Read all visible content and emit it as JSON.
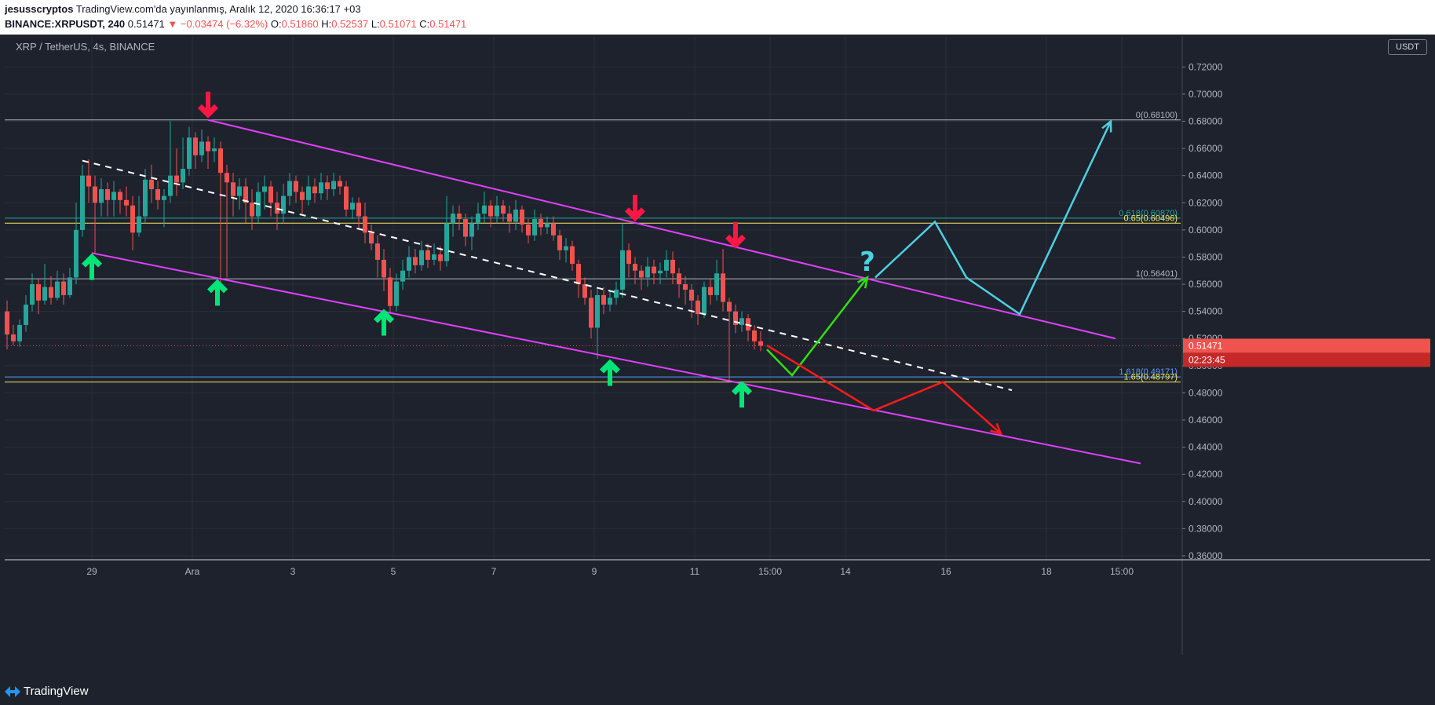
{
  "header": {
    "author": "jesusscryptos",
    "published": "TradingView.com'da yayınlanmış, Aralık 12, 2020 16:36:17 +03",
    "symbol": "BINANCE:XRPUSDT, 240",
    "last": "0.51471",
    "change": "−0.03474 (−6.32%)",
    "open_label": "O:",
    "open": "0.51860",
    "high_label": "H:",
    "high": "0.52537",
    "low_label": "L:",
    "low": "0.51071",
    "close_label": "C:",
    "close": "0.51471"
  },
  "chart_title": "XRP / TetherUS, 4s, BINANCE",
  "unit": "USDT",
  "price_tag": "0.51471",
  "countdown_tag": "02:23:45",
  "footer": {
    "brand": "TradingView"
  },
  "colors": {
    "up": "#26a69a",
    "down": "#ef5350",
    "channel": "#e040fb",
    "fib_gray": "#b2b5be",
    "fib_teal": "#26a69a",
    "fib_yellow": "#f5e663",
    "arrow_green": "#00e676",
    "arrow_red": "#ff1744",
    "path_cyan": "#4dd0e1",
    "background": "#1e222d"
  },
  "chart_data": {
    "type": "candlestick",
    "y_axis": {
      "min": 0.36,
      "max": 0.73,
      "ticks": [
        "0.72000",
        "0.70000",
        "0.68000",
        "0.66000",
        "0.64000",
        "0.62000",
        "0.60000",
        "0.58000",
        "0.56000",
        "0.54000",
        "0.52000",
        "0.50000",
        "0.48000",
        "0.46000",
        "0.44000",
        "0.42000",
        "0.40000",
        "0.38000",
        "0.36000"
      ]
    },
    "x_axis": {
      "min": 0,
      "max": 1416,
      "ticks": [
        {
          "x": 108,
          "label": "29"
        },
        {
          "x": 236,
          "label": "Ara"
        },
        {
          "x": 364,
          "label": "3"
        },
        {
          "x": 492,
          "label": "5"
        },
        {
          "x": 620,
          "label": "7"
        },
        {
          "x": 748,
          "label": "9"
        },
        {
          "x": 876,
          "label": "11"
        },
        {
          "x": 972,
          "label": "15:00"
        },
        {
          "x": 1068,
          "label": "14"
        },
        {
          "x": 1196,
          "label": "16"
        },
        {
          "x": 1324,
          "label": "18"
        },
        {
          "x": 1420,
          "label": "15:00"
        }
      ]
    },
    "candles": [
      [
        0,
        0.54,
        0.523,
        0.548,
        0.512
      ],
      [
        8,
        0.523,
        0.518,
        0.53,
        0.515
      ],
      [
        16,
        0.518,
        0.53,
        0.534,
        0.514
      ],
      [
        24,
        0.53,
        0.545,
        0.552,
        0.525
      ],
      [
        32,
        0.545,
        0.56,
        0.568,
        0.54
      ],
      [
        40,
        0.56,
        0.548,
        0.564,
        0.538
      ],
      [
        48,
        0.548,
        0.558,
        0.575,
        0.545
      ],
      [
        56,
        0.558,
        0.55,
        0.566,
        0.545
      ],
      [
        64,
        0.55,
        0.562,
        0.57,
        0.548
      ],
      [
        72,
        0.562,
        0.552,
        0.568,
        0.545
      ],
      [
        80,
        0.552,
        0.565,
        0.572,
        0.55
      ],
      [
        88,
        0.565,
        0.6,
        0.62,
        0.56
      ],
      [
        96,
        0.6,
        0.64,
        0.648,
        0.595
      ],
      [
        104,
        0.64,
        0.632,
        0.652,
        0.62
      ],
      [
        112,
        0.632,
        0.62,
        0.64,
        0.583
      ],
      [
        120,
        0.62,
        0.63,
        0.638,
        0.61
      ],
      [
        128,
        0.63,
        0.622,
        0.635,
        0.61
      ],
      [
        136,
        0.622,
        0.628,
        0.636,
        0.61
      ],
      [
        144,
        0.628,
        0.622,
        0.63,
        0.612
      ],
      [
        152,
        0.622,
        0.618,
        0.632,
        0.61
      ],
      [
        160,
        0.618,
        0.598,
        0.625,
        0.585
      ],
      [
        168,
        0.598,
        0.61,
        0.625,
        0.595
      ],
      [
        176,
        0.61,
        0.637,
        0.645,
        0.605
      ],
      [
        184,
        0.637,
        0.63,
        0.648,
        0.62
      ],
      [
        192,
        0.63,
        0.622,
        0.636,
        0.615
      ],
      [
        200,
        0.622,
        0.625,
        0.63,
        0.602
      ],
      [
        208,
        0.625,
        0.64,
        0.68,
        0.62
      ],
      [
        216,
        0.64,
        0.635,
        0.66,
        0.625
      ],
      [
        224,
        0.635,
        0.645,
        0.668,
        0.63
      ],
      [
        232,
        0.645,
        0.668,
        0.676,
        0.64
      ],
      [
        240,
        0.668,
        0.655,
        0.672,
        0.645
      ],
      [
        248,
        0.655,
        0.665,
        0.674,
        0.65
      ],
      [
        256,
        0.665,
        0.658,
        0.669,
        0.645
      ],
      [
        264,
        0.658,
        0.66,
        0.668,
        0.65
      ],
      [
        272,
        0.66,
        0.642,
        0.665,
        0.56
      ],
      [
        280,
        0.642,
        0.635,
        0.648,
        0.565
      ],
      [
        288,
        0.635,
        0.625,
        0.642,
        0.61
      ],
      [
        296,
        0.625,
        0.632,
        0.638,
        0.615
      ],
      [
        304,
        0.632,
        0.62,
        0.638,
        0.605
      ],
      [
        312,
        0.62,
        0.61,
        0.63,
        0.6
      ],
      [
        320,
        0.61,
        0.628,
        0.635,
        0.605
      ],
      [
        328,
        0.628,
        0.632,
        0.64,
        0.615
      ],
      [
        336,
        0.632,
        0.62,
        0.636,
        0.61
      ],
      [
        344,
        0.62,
        0.612,
        0.628,
        0.6
      ],
      [
        352,
        0.612,
        0.625,
        0.634,
        0.605
      ],
      [
        360,
        0.625,
        0.636,
        0.642,
        0.618
      ],
      [
        368,
        0.636,
        0.628,
        0.64,
        0.62
      ],
      [
        376,
        0.628,
        0.622,
        0.632,
        0.612
      ],
      [
        384,
        0.622,
        0.632,
        0.64,
        0.618
      ],
      [
        392,
        0.632,
        0.627,
        0.638,
        0.62
      ],
      [
        400,
        0.627,
        0.635,
        0.642,
        0.622
      ],
      [
        408,
        0.635,
        0.63,
        0.64,
        0.622
      ],
      [
        416,
        0.63,
        0.636,
        0.642,
        0.625
      ],
      [
        424,
        0.636,
        0.632,
        0.64,
        0.626
      ],
      [
        432,
        0.632,
        0.615,
        0.636,
        0.61
      ],
      [
        440,
        0.615,
        0.62,
        0.624,
        0.608
      ],
      [
        448,
        0.62,
        0.61,
        0.624,
        0.6
      ],
      [
        456,
        0.61,
        0.598,
        0.62,
        0.59
      ],
      [
        464,
        0.598,
        0.59,
        0.604,
        0.585
      ],
      [
        472,
        0.59,
        0.578,
        0.596,
        0.565
      ],
      [
        480,
        0.578,
        0.565,
        0.586,
        0.555
      ],
      [
        488,
        0.565,
        0.544,
        0.572,
        0.538
      ],
      [
        496,
        0.544,
        0.562,
        0.568,
        0.54
      ],
      [
        504,
        0.562,
        0.57,
        0.578,
        0.556
      ],
      [
        512,
        0.57,
        0.58,
        0.588,
        0.565
      ],
      [
        520,
        0.58,
        0.574,
        0.586,
        0.568
      ],
      [
        528,
        0.574,
        0.585,
        0.592,
        0.57
      ],
      [
        536,
        0.585,
        0.578,
        0.59,
        0.572
      ],
      [
        544,
        0.578,
        0.582,
        0.59,
        0.574
      ],
      [
        552,
        0.582,
        0.577,
        0.588,
        0.57
      ],
      [
        560,
        0.577,
        0.605,
        0.625,
        0.573
      ],
      [
        568,
        0.605,
        0.612,
        0.618,
        0.595
      ],
      [
        576,
        0.612,
        0.608,
        0.618,
        0.6
      ],
      [
        584,
        0.608,
        0.595,
        0.612,
        0.588
      ],
      [
        592,
        0.595,
        0.605,
        0.61,
        0.585
      ],
      [
        600,
        0.605,
        0.612,
        0.62,
        0.6
      ],
      [
        608,
        0.612,
        0.618,
        0.628,
        0.605
      ],
      [
        616,
        0.618,
        0.61,
        0.622,
        0.602
      ],
      [
        624,
        0.61,
        0.618,
        0.625,
        0.605
      ],
      [
        632,
        0.618,
        0.612,
        0.622,
        0.606
      ],
      [
        640,
        0.612,
        0.606,
        0.618,
        0.598
      ],
      [
        648,
        0.606,
        0.615,
        0.622,
        0.6
      ],
      [
        656,
        0.615,
        0.604,
        0.618,
        0.598
      ],
      [
        664,
        0.604,
        0.596,
        0.608,
        0.59
      ],
      [
        672,
        0.596,
        0.608,
        0.615,
        0.592
      ],
      [
        680,
        0.608,
        0.602,
        0.612,
        0.596
      ],
      [
        688,
        0.602,
        0.605,
        0.61,
        0.597
      ],
      [
        696,
        0.605,
        0.596,
        0.61,
        0.592
      ],
      [
        704,
        0.596,
        0.585,
        0.6,
        0.578
      ],
      [
        712,
        0.585,
        0.588,
        0.594,
        0.576
      ],
      [
        720,
        0.588,
        0.575,
        0.592,
        0.57
      ],
      [
        728,
        0.575,
        0.56,
        0.578,
        0.55
      ],
      [
        736,
        0.56,
        0.55,
        0.565,
        0.545
      ],
      [
        744,
        0.55,
        0.528,
        0.556,
        0.52
      ],
      [
        752,
        0.528,
        0.552,
        0.558,
        0.505
      ],
      [
        760,
        0.552,
        0.545,
        0.558,
        0.538
      ],
      [
        768,
        0.545,
        0.55,
        0.556,
        0.54
      ],
      [
        776,
        0.55,
        0.556,
        0.562,
        0.545
      ],
      [
        784,
        0.556,
        0.585,
        0.605,
        0.55
      ],
      [
        792,
        0.585,
        0.575,
        0.59,
        0.565
      ],
      [
        800,
        0.575,
        0.57,
        0.58,
        0.56
      ],
      [
        808,
        0.57,
        0.565,
        0.574,
        0.556
      ],
      [
        816,
        0.565,
        0.573,
        0.58,
        0.558
      ],
      [
        824,
        0.573,
        0.568,
        0.578,
        0.56
      ],
      [
        832,
        0.568,
        0.57,
        0.576,
        0.56
      ],
      [
        840,
        0.57,
        0.578,
        0.585,
        0.565
      ],
      [
        848,
        0.578,
        0.568,
        0.584,
        0.56
      ],
      [
        856,
        0.568,
        0.56,
        0.572,
        0.55
      ],
      [
        864,
        0.56,
        0.556,
        0.566,
        0.545
      ],
      [
        872,
        0.556,
        0.548,
        0.56,
        0.535
      ],
      [
        880,
        0.548,
        0.538,
        0.552,
        0.53
      ],
      [
        888,
        0.538,
        0.558,
        0.562,
        0.535
      ],
      [
        896,
        0.558,
        0.552,
        0.564,
        0.545
      ],
      [
        904,
        0.552,
        0.568,
        0.578,
        0.548
      ],
      [
        912,
        0.568,
        0.547,
        0.586,
        0.54
      ],
      [
        920,
        0.547,
        0.54,
        0.55,
        0.488
      ],
      [
        928,
        0.54,
        0.53,
        0.545,
        0.524
      ],
      [
        936,
        0.53,
        0.535,
        0.54,
        0.525
      ],
      [
        944,
        0.535,
        0.526,
        0.538,
        0.518
      ],
      [
        952,
        0.526,
        0.518,
        0.53,
        0.512
      ],
      [
        960,
        0.518,
        0.5147,
        0.5254,
        0.5107
      ]
    ],
    "channel_upper": [
      [
        256,
        0.681
      ],
      [
        1412,
        0.52
      ]
    ],
    "channel_lower": [
      [
        108,
        0.583
      ],
      [
        1444,
        0.428
      ]
    ],
    "midline": [
      [
        96,
        0.651
      ],
      [
        1280,
        0.482
      ]
    ],
    "fib_levels": [
      {
        "label": "0(0.68100)",
        "value": 0.681,
        "color": "#b2b5be"
      },
      {
        "label": "0.618(0.60870)",
        "value": 0.6087,
        "color": "#26a69a"
      },
      {
        "label": "0.65(0.60496)",
        "value": 0.60496,
        "color": "#f5e663"
      },
      {
        "label": "1(0.56401)",
        "value": 0.56401,
        "color": "#b2b5be"
      },
      {
        "label": "1.618(0.49171)",
        "value": 0.49171,
        "color": "#5c9cf5"
      },
      {
        "label": "1.65(0.48797)",
        "value": 0.48797,
        "color": "#f5e663"
      }
    ],
    "fib_line_end_x": 1498,
    "green_arrows_up": [
      [
        108,
        0.573
      ],
      [
        268,
        0.554
      ],
      [
        480,
        0.532
      ],
      [
        768,
        0.495
      ],
      [
        936,
        0.479
      ]
    ],
    "red_arrows_down": [
      [
        256,
        0.692
      ],
      [
        800,
        0.616
      ],
      [
        928,
        0.596
      ]
    ],
    "green_path": [
      [
        968,
        0.512
      ],
      [
        1000,
        0.493
      ],
      [
        1096,
        0.565
      ]
    ],
    "red_path": [
      [
        968,
        0.515
      ],
      [
        1104,
        0.467
      ],
      [
        1192,
        0.488
      ],
      [
        1266,
        0.45
      ]
    ],
    "cyan_path": [
      [
        1106,
        0.565
      ],
      [
        1182,
        0.606
      ],
      [
        1222,
        0.565
      ],
      [
        1290,
        0.538
      ],
      [
        1406,
        0.68
      ]
    ],
    "question_mark": {
      "x": 1096,
      "y": 0.57,
      "text": "?"
    },
    "current_price": 0.51471
  }
}
